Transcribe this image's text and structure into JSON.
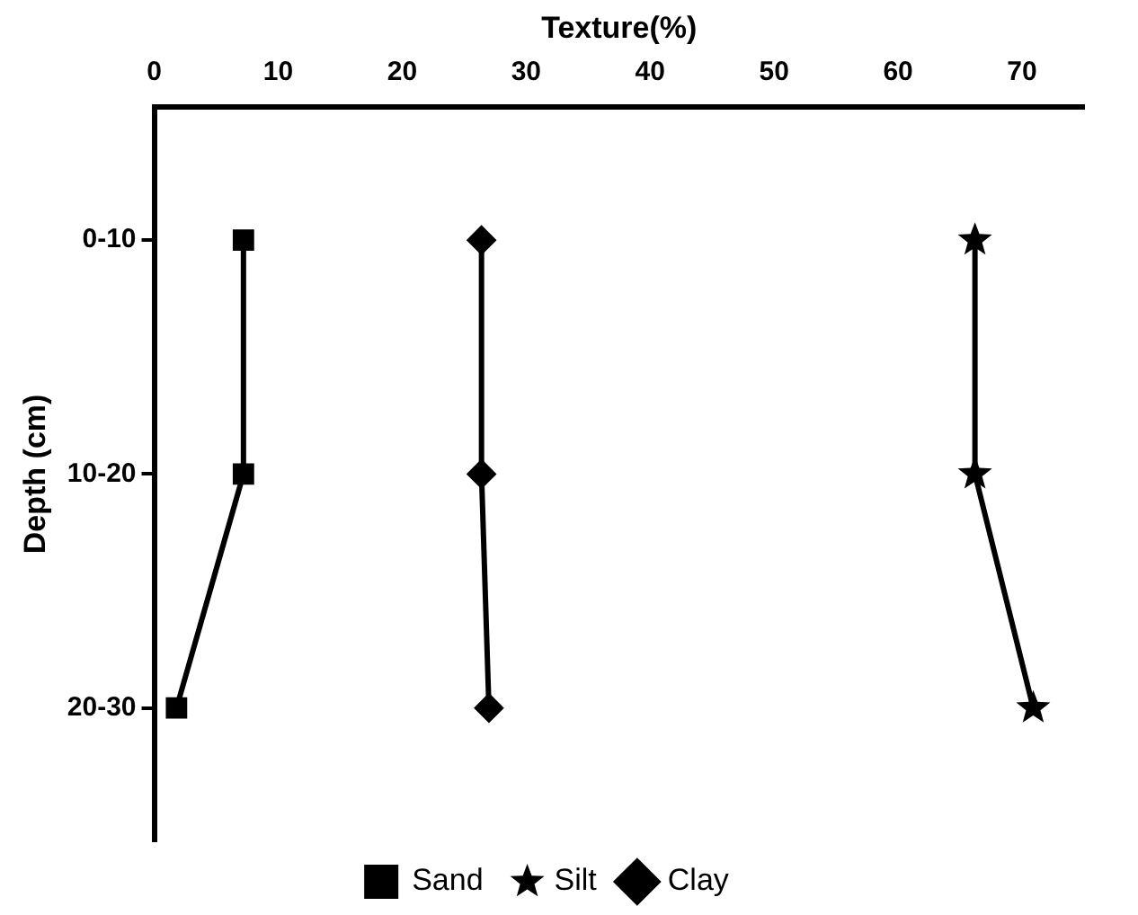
{
  "chart_data": {
    "type": "line",
    "xlabel": "Texture(%)",
    "ylabel": "Depth (cm)",
    "categories": [
      "0-10",
      "10-20",
      "20-30"
    ],
    "orientation": "horizontal",
    "xlim": [
      0,
      75
    ],
    "xticks": [
      0,
      10,
      20,
      30,
      40,
      50,
      60,
      70
    ],
    "series": [
      {
        "name": "Sand",
        "color": "#000000",
        "marker": "square",
        "values": [
          7.2,
          7.2,
          1.8
        ]
      },
      {
        "name": "Silt",
        "color": "#000000",
        "marker": "star",
        "values": [
          66.2,
          66.2,
          70.9
        ]
      },
      {
        "name": "Clay",
        "color": "#000000",
        "marker": "diamond",
        "values": [
          26.4,
          26.4,
          27.0
        ]
      }
    ],
    "grid": false,
    "legend": "bottom",
    "line_style": "solid"
  }
}
